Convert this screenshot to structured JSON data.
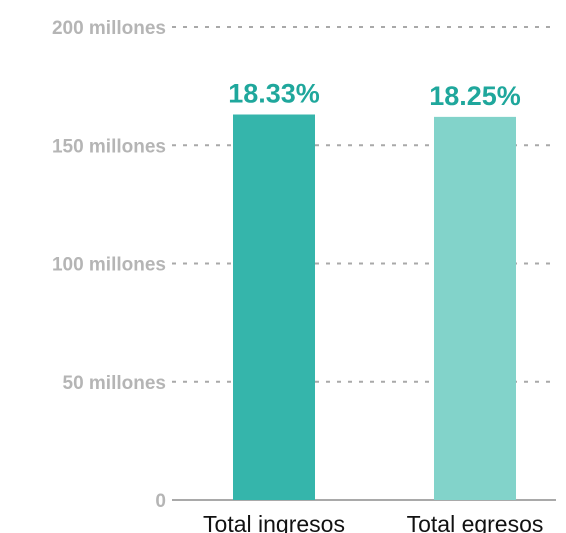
{
  "chart_data": {
    "type": "bar",
    "title": "",
    "xlabel": "",
    "ylabel": "",
    "categories": [
      "Total ingresos",
      "Total egresos"
    ],
    "values": [
      163000000,
      162000000
    ],
    "data_labels": [
      "18.33%",
      "18.25%"
    ],
    "ylim": [
      0,
      200000000
    ],
    "yticks": [
      {
        "value": 0,
        "label": "0"
      },
      {
        "value": 50000000,
        "label": "50 millones"
      },
      {
        "value": 100000000,
        "label": "100 millones"
      },
      {
        "value": 150000000,
        "label": "150 millones"
      },
      {
        "value": 200000000,
        "label": "200 millones"
      }
    ],
    "grid": true,
    "legend": "none",
    "colors": {
      "bars": [
        "#35b5ab",
        "#82d3ca"
      ],
      "data_label": "#1fa79c",
      "tick_label": "#b5b5b5",
      "gridline": "#a9a9a9",
      "category_label": "#111111"
    }
  }
}
